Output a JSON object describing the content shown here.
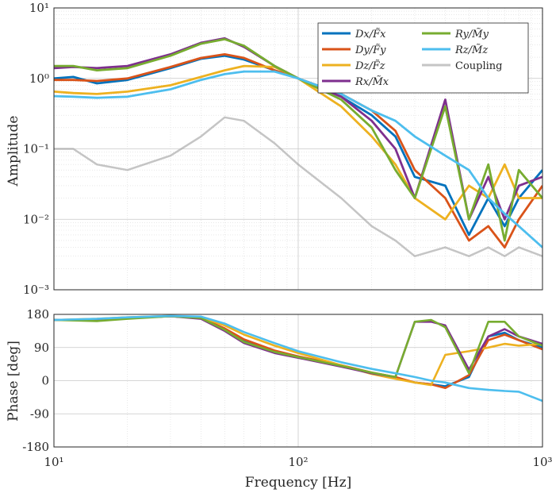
{
  "chart_data": [
    {
      "type": "line",
      "panel": "amplitude",
      "ylabel": "Amplitude",
      "xscale": "log",
      "yscale": "log",
      "xlim": [
        10,
        1000
      ],
      "ylim": [
        0.001,
        10
      ],
      "grid": true,
      "legend_position": "top-right",
      "x_ticks": [
        "10¹",
        "10²",
        "10³"
      ],
      "y_ticks": [
        "10⁻³",
        "10⁻²",
        "10⁻¹",
        "10⁰",
        "10¹"
      ],
      "x": [
        10,
        12,
        15,
        20,
        30,
        40,
        50,
        60,
        80,
        100,
        150,
        200,
        250,
        300,
        400,
        500,
        600,
        700,
        800,
        1000
      ],
      "series": [
        {
          "name": "Dx/F̃x",
          "color": "#0072BD",
          "values": [
            1.0,
            1.05,
            0.85,
            0.95,
            1.4,
            1.9,
            2.1,
            1.85,
            1.3,
            1.0,
            0.55,
            0.3,
            0.15,
            0.04,
            0.03,
            0.006,
            0.02,
            0.008,
            0.02,
            0.05
          ]
        },
        {
          "name": "Dy/F̃y",
          "color": "#D95319",
          "values": [
            0.95,
            0.95,
            0.92,
            1.0,
            1.45,
            1.95,
            2.2,
            1.95,
            1.3,
            1.0,
            0.6,
            0.35,
            0.18,
            0.05,
            0.02,
            0.005,
            0.008,
            0.004,
            0.01,
            0.03
          ]
        },
        {
          "name": "Dz/F̃z",
          "color": "#EDB120",
          "values": [
            0.65,
            0.62,
            0.6,
            0.65,
            0.8,
            1.05,
            1.3,
            1.5,
            1.45,
            1.0,
            0.4,
            0.15,
            0.06,
            0.02,
            0.01,
            0.03,
            0.02,
            0.06,
            0.02,
            0.02
          ]
        },
        {
          "name": "Rx/M̃x",
          "color": "#7E2F8E",
          "values": [
            1.4,
            1.45,
            1.4,
            1.5,
            2.2,
            3.2,
            3.7,
            2.8,
            1.5,
            1.0,
            0.55,
            0.25,
            0.1,
            0.02,
            0.5,
            0.01,
            0.04,
            0.01,
            0.03,
            0.04
          ]
        },
        {
          "name": "Ry/M̃y",
          "color": "#77AC30",
          "values": [
            1.5,
            1.5,
            1.3,
            1.4,
            2.1,
            3.1,
            3.6,
            2.9,
            1.5,
            1.0,
            0.5,
            0.2,
            0.05,
            0.02,
            0.4,
            0.01,
            0.06,
            0.005,
            0.05,
            0.02
          ]
        },
        {
          "name": "Rz/M̃z",
          "color": "#4DBEEE",
          "values": [
            0.56,
            0.55,
            0.53,
            0.55,
            0.7,
            0.95,
            1.15,
            1.25,
            1.25,
            1.0,
            0.6,
            0.35,
            0.25,
            0.15,
            0.08,
            0.05,
            0.02,
            0.012,
            0.008,
            0.004
          ]
        },
        {
          "name": "Coupling",
          "color": "#9E9E9E",
          "values": [
            0.1,
            0.1,
            0.06,
            0.05,
            0.08,
            0.15,
            0.28,
            0.25,
            0.12,
            0.06,
            0.02,
            0.008,
            0.005,
            0.003,
            0.004,
            0.003,
            0.004,
            0.003,
            0.004,
            0.003
          ]
        }
      ]
    },
    {
      "type": "line",
      "panel": "phase",
      "xlabel": "Frequency [Hz]",
      "ylabel": "Phase [deg]",
      "xscale": "log",
      "xlim": [
        10,
        1000
      ],
      "ylim": [
        -180,
        180
      ],
      "grid": true,
      "x_ticks": [
        "10¹",
        "10²",
        "10³"
      ],
      "y_ticks": [
        "-180",
        "-90",
        "0",
        "90",
        "180"
      ],
      "x": [
        10,
        15,
        20,
        30,
        40,
        50,
        60,
        80,
        100,
        150,
        200,
        250,
        300,
        350,
        400,
        500,
        600,
        700,
        800,
        1000
      ],
      "series": [
        {
          "name": "Dx/F̃x",
          "color": "#0072BD",
          "values": [
            165,
            165,
            170,
            175,
            170,
            140,
            110,
            80,
            65,
            40,
            20,
            8,
            -5,
            -10,
            -15,
            10,
            120,
            130,
            110,
            90
          ]
        },
        {
          "name": "Dy/F̃y",
          "color": "#D95319",
          "values": [
            165,
            165,
            170,
            175,
            170,
            142,
            112,
            82,
            66,
            42,
            22,
            10,
            -5,
            -10,
            -20,
            15,
            110,
            125,
            110,
            85
          ]
        },
        {
          "name": "Dz/F̃z",
          "color": "#EDB120",
          "values": [
            165,
            168,
            172,
            176,
            172,
            150,
            125,
            95,
            75,
            42,
            18,
            5,
            -5,
            -12,
            70,
            80,
            90,
            100,
            95,
            100
          ]
        },
        {
          "name": "Rx/M̃x",
          "color": "#7E2F8E",
          "values": [
            165,
            165,
            170,
            175,
            168,
            135,
            102,
            75,
            62,
            38,
            20,
            10,
            160,
            160,
            150,
            30,
            120,
            140,
            120,
            100
          ]
        },
        {
          "name": "Ry/M̃y",
          "color": "#77AC30",
          "values": [
            165,
            162,
            168,
            175,
            170,
            138,
            105,
            78,
            64,
            40,
            22,
            10,
            160,
            165,
            145,
            20,
            160,
            160,
            120,
            95
          ]
        },
        {
          "name": "Rz/M̃z",
          "color": "#4DBEEE",
          "values": [
            165,
            168,
            172,
            176,
            174,
            155,
            132,
            102,
            80,
            50,
            32,
            20,
            10,
            0,
            -5,
            -20,
            -25,
            -28,
            -30,
            -55
          ]
        }
      ]
    }
  ]
}
